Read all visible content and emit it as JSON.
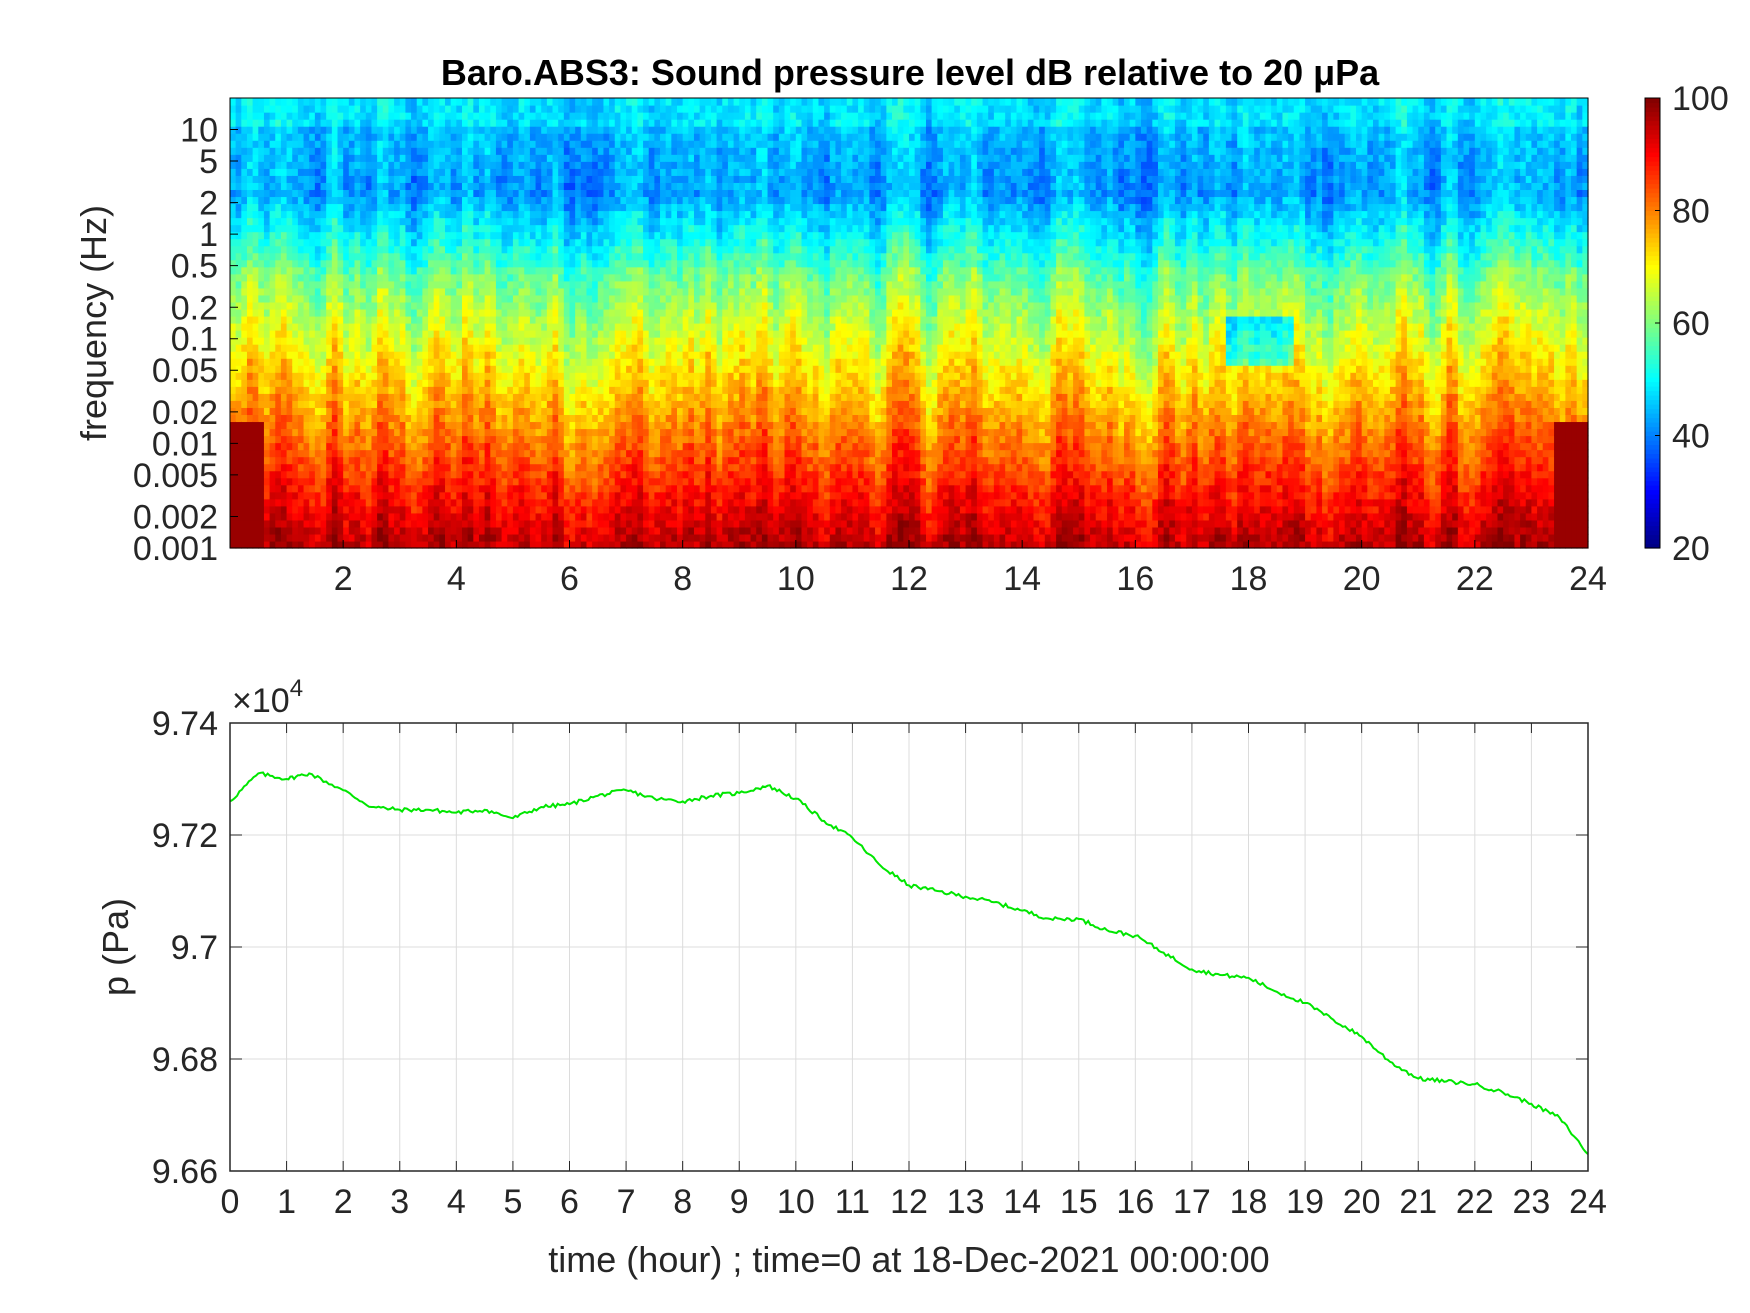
{
  "chart_data": [
    {
      "type": "heatmap",
      "title": "Baro.ABS3: Sound pressure level dB relative to 20 μPa",
      "ylabel": "frequency (Hz)",
      "xlabel": "",
      "x_range": [
        0,
        24
      ],
      "x_ticks": [
        2,
        4,
        6,
        8,
        10,
        12,
        14,
        16,
        18,
        20,
        22,
        24
      ],
      "y_scale": "log",
      "y_range": [
        0.001,
        20
      ],
      "y_ticks": [
        0.001,
        0.002,
        0.005,
        0.01,
        0.02,
        0.05,
        0.1,
        0.2,
        0.5,
        1,
        2,
        5,
        10
      ],
      "y_tick_labels": [
        "0.001",
        "0.002",
        "0.005",
        "0.01",
        "0.02",
        "0.05",
        "0.1",
        "0.2",
        "0.5",
        "1",
        "2",
        "5",
        "10"
      ],
      "colormap": "jet",
      "colorbar": {
        "range": [
          20,
          100
        ],
        "ticks": [
          20,
          40,
          60,
          80,
          100
        ]
      },
      "grid": false
    },
    {
      "type": "line",
      "xlabel": "time (hour) ; time=0 at 18-Dec-2021 00:00:00",
      "ylabel": "p (Pa)",
      "y_exponent_label": "×10",
      "y_exponent": "4",
      "xlim": [
        0,
        24
      ],
      "ylim": [
        9.66,
        9.74
      ],
      "x_ticks": [
        0,
        1,
        2,
        3,
        4,
        5,
        6,
        7,
        8,
        9,
        10,
        11,
        12,
        13,
        14,
        15,
        16,
        17,
        18,
        19,
        20,
        21,
        22,
        23,
        24
      ],
      "y_ticks": [
        "9.66",
        "9.68",
        "9.7",
        "9.72",
        "9.74"
      ],
      "grid": true,
      "line_color": "#00e600",
      "series": [
        {
          "x": [
            0,
            0.5,
            1,
            1.4,
            2,
            2.5,
            3,
            3.5,
            4,
            4.5,
            5,
            5.5,
            6,
            6.5,
            7,
            7.5,
            8,
            8.5,
            9,
            9.5,
            10,
            10.5,
            11,
            11.5,
            12,
            12.5,
            13,
            13.5,
            14,
            14.5,
            15,
            15.5,
            16,
            16.5,
            17,
            17.5,
            18,
            18.5,
            19,
            19.5,
            20,
            20.5,
            21,
            21.5,
            22,
            22.5,
            23,
            23.5,
            24
          ],
          "y": [
            9.726,
            9.731,
            9.73,
            9.731,
            9.728,
            9.725,
            9.7245,
            9.7245,
            9.724,
            9.7245,
            9.723,
            9.725,
            9.7255,
            9.727,
            9.728,
            9.7265,
            9.726,
            9.727,
            9.7275,
            9.7288,
            9.7265,
            9.7225,
            9.7195,
            9.7145,
            9.711,
            9.71,
            9.709,
            9.708,
            9.7065,
            9.705,
            9.705,
            9.703,
            9.702,
            9.699,
            9.696,
            9.695,
            9.6945,
            9.692,
            9.69,
            9.687,
            9.684,
            9.6795,
            9.6765,
            9.676,
            9.6755,
            9.674,
            9.672,
            9.6695,
            9.663
          ]
        }
      ]
    }
  ]
}
